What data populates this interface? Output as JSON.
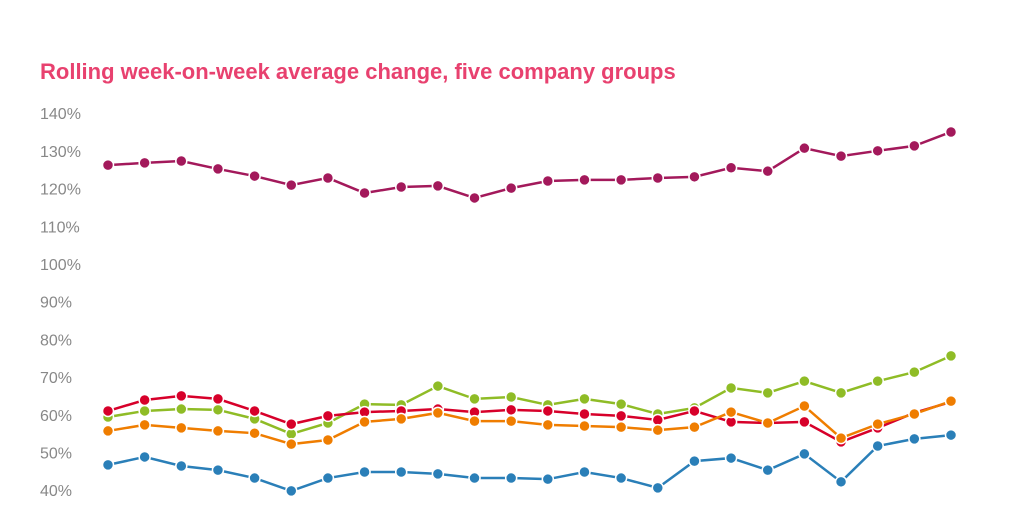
{
  "chart_data": {
    "type": "line",
    "title": "Rolling week-on-week average change, five company groups",
    "ylim": [
      40,
      140
    ],
    "yticks": [
      {
        "value": 40,
        "label": "40%"
      },
      {
        "value": 50,
        "label": "50%"
      },
      {
        "value": 60,
        "label": "60%"
      },
      {
        "value": 70,
        "label": "70%"
      },
      {
        "value": 80,
        "label": "80%"
      },
      {
        "value": 90,
        "label": "90%"
      },
      {
        "value": 100,
        "label": "100%"
      },
      {
        "value": 110,
        "label": "110%"
      },
      {
        "value": 120,
        "label": "120%"
      },
      {
        "value": 130,
        "label": "130%"
      },
      {
        "value": 140,
        "label": "140%"
      }
    ],
    "series": [
      {
        "color": "#a3195b",
        "values": [
          126.7,
          127.3,
          127.8,
          125.7,
          123.8,
          121.4,
          123.3,
          119.3,
          120.9,
          121.2,
          118.0,
          120.6,
          122.5,
          122.8,
          122.8,
          123.3,
          123.6,
          126.0,
          125.1,
          131.2,
          129.1,
          130.5,
          131.8,
          135.5
        ]
      },
      {
        "color": "#8fbc26",
        "values": [
          59.9,
          61.5,
          62.0,
          61.8,
          59.4,
          55.4,
          58.3,
          63.3,
          63.1,
          68.1,
          64.7,
          65.2,
          63.1,
          64.7,
          63.3,
          60.7,
          62.3,
          67.6,
          66.3,
          69.4,
          66.3,
          69.4,
          71.8,
          76.1
        ]
      },
      {
        "color": "#d7002a",
        "values": [
          61.5,
          64.4,
          65.5,
          64.7,
          61.5,
          58.0,
          60.2,
          61.2,
          61.5,
          62.0,
          61.2,
          61.8,
          61.5,
          60.7,
          60.2,
          59.1,
          61.5,
          58.6,
          58.3,
          58.6,
          53.3,
          57.0,
          61.0,
          63.9
        ]
      },
      {
        "color": "#ef7d00",
        "values": [
          56.2,
          57.8,
          57.0,
          56.2,
          55.6,
          52.7,
          53.8,
          58.6,
          59.4,
          61.0,
          58.8,
          58.8,
          57.8,
          57.5,
          57.2,
          56.4,
          57.2,
          61.2,
          58.3,
          62.8,
          54.3,
          58.0,
          60.7,
          64.1
        ]
      },
      {
        "color": "#2a7fb8",
        "values": [
          47.2,
          49.3,
          46.9,
          45.8,
          43.7,
          40.3,
          43.7,
          45.3,
          45.3,
          44.8,
          43.7,
          43.7,
          43.4,
          45.3,
          43.7,
          41.1,
          48.2,
          49.0,
          45.8,
          50.1,
          42.7,
          52.2,
          54.1,
          55.1
        ]
      }
    ]
  }
}
